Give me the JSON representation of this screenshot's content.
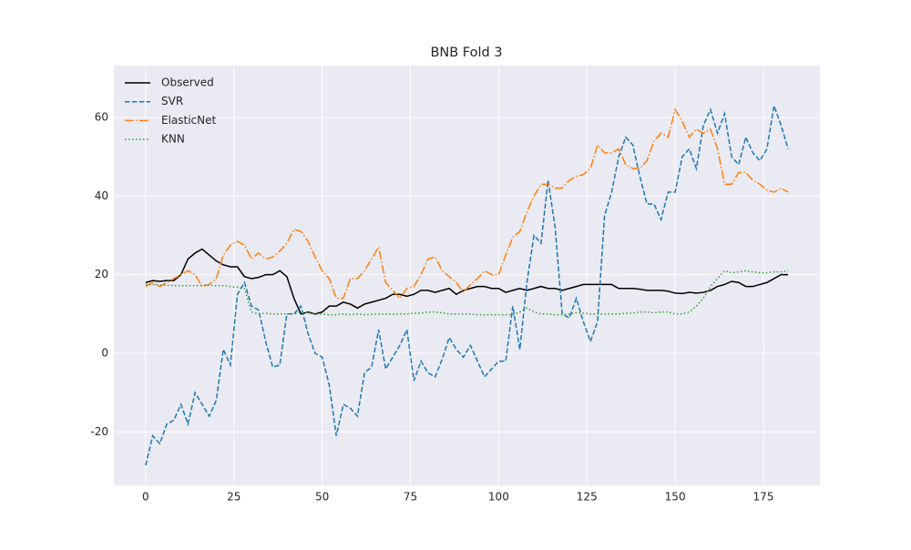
{
  "chart_data": {
    "type": "line",
    "title": "BNB Fold 3",
    "x": [
      0,
      2,
      4,
      6,
      8,
      10,
      12,
      14,
      16,
      18,
      20,
      22,
      24,
      26,
      28,
      30,
      32,
      34,
      36,
      38,
      40,
      42,
      44,
      46,
      48,
      50,
      52,
      54,
      56,
      58,
      60,
      62,
      64,
      66,
      68,
      70,
      72,
      74,
      76,
      78,
      80,
      82,
      84,
      86,
      88,
      90,
      92,
      94,
      96,
      98,
      100,
      102,
      104,
      106,
      108,
      110,
      112,
      114,
      116,
      118,
      120,
      122,
      124,
      126,
      128,
      130,
      132,
      134,
      136,
      138,
      140,
      142,
      144,
      146,
      148,
      150,
      152,
      154,
      156,
      158,
      160,
      162,
      164,
      166,
      168,
      170,
      172,
      174,
      176,
      178,
      180,
      182
    ],
    "series": [
      {
        "name": "Observed",
        "color": "#000000",
        "dash": "solid",
        "values": [
          18,
          18.5,
          18.3,
          18.5,
          18.5,
          20,
          24,
          25.5,
          26.5,
          25,
          23.5,
          22.5,
          22,
          22,
          19.5,
          19,
          19.3,
          20,
          20,
          21,
          19.5,
          14,
          10,
          10.5,
          10,
          10.5,
          12,
          12,
          13,
          12.5,
          11.5,
          12.5,
          13,
          13.5,
          14,
          15,
          15,
          14.5,
          15,
          16,
          16,
          15.5,
          16,
          16.5,
          15,
          16,
          16.5,
          17,
          17,
          16.5,
          16.5,
          15.5,
          16,
          16.5,
          16,
          16.5,
          17,
          16.5,
          16.5,
          16,
          16.5,
          17,
          17.5,
          17.5,
          17.5,
          17.5,
          17.5,
          16.5,
          16.5,
          16.5,
          16.3,
          16,
          16,
          16,
          15.8,
          15.3,
          15.2,
          15.5,
          15.3,
          15.5,
          16,
          17,
          17.5,
          18.3,
          18,
          17,
          17,
          17.5,
          18,
          19,
          20,
          20
        ]
      },
      {
        "name": "SVR",
        "color": "#1f77b4",
        "dash": "dashed",
        "values": [
          -28.5,
          -21,
          -23,
          -18,
          -17,
          -13,
          -18,
          -10,
          -13,
          -16,
          -12,
          1,
          -3,
          15,
          18,
          12,
          11,
          3,
          -3.5,
          -3,
          10,
          10,
          12,
          5,
          0,
          -1,
          -8,
          -21,
          -13,
          -14,
          -16,
          -5,
          -3.5,
          6,
          -4,
          -1,
          2,
          6,
          -7,
          -2,
          -5,
          -6,
          -1.5,
          4,
          1,
          -1,
          2,
          -2,
          -6,
          -4,
          -2,
          -2,
          12,
          1,
          18,
          30,
          28,
          44,
          32,
          10,
          9,
          14,
          8,
          3,
          8,
          35,
          41,
          50,
          55,
          53,
          45,
          38,
          38,
          34,
          41,
          41,
          50,
          52,
          47,
          58,
          62,
          56,
          61,
          50,
          48,
          55,
          51,
          49,
          52,
          63,
          58,
          52
        ]
      },
      {
        "name": "ElasticNet",
        "color": "#ff7f0e",
        "dash": "dashdot",
        "values": [
          17,
          18,
          17,
          18,
          19,
          20,
          21,
          20,
          17,
          17.5,
          19,
          25,
          27.5,
          28.5,
          27.5,
          24,
          25.5,
          24,
          24.5,
          26,
          28,
          31.5,
          31,
          28.5,
          24.5,
          21,
          19,
          14,
          14,
          19,
          19,
          21,
          24,
          27,
          18,
          16,
          14,
          16.5,
          17,
          20,
          24,
          24.5,
          21,
          19.5,
          18,
          15.5,
          17.5,
          19,
          21,
          20,
          20,
          25,
          29.5,
          31,
          36,
          40,
          43,
          43,
          42,
          42,
          44,
          45,
          45.5,
          47,
          53,
          51,
          51,
          52,
          48,
          47,
          47,
          49,
          54,
          56,
          55,
          62,
          59,
          55,
          57,
          56,
          57,
          52,
          43,
          43,
          46,
          46,
          44,
          43,
          41.5,
          41,
          42,
          41
        ]
      },
      {
        "name": "KNN",
        "color": "#2ca02c",
        "dash": "dotted",
        "values": [
          17.5,
          17.5,
          17.3,
          17.3,
          17.2,
          17.2,
          17.2,
          17.2,
          17.3,
          17.3,
          17.2,
          17.2,
          17,
          16.8,
          16.5,
          10.5,
          10,
          10.2,
          10,
          10,
          10,
          10,
          10.5,
          10.3,
          10,
          10,
          9.8,
          9.8,
          10,
          9.8,
          10,
          9.8,
          9.9,
          10,
          10,
          9.9,
          10,
          10,
          10.2,
          10.2,
          10.5,
          10.5,
          10.3,
          10,
          10,
          10,
          10,
          9.8,
          9.8,
          9.8,
          9.8,
          9.8,
          9.8,
          10.5,
          11.5,
          10.5,
          10,
          10,
          9.8,
          9.8,
          10,
          10.3,
          10.2,
          10,
          10,
          10,
          10,
          10,
          10.2,
          10.2,
          10.5,
          10.5,
          10.3,
          10.5,
          10.5,
          10,
          10,
          10.5,
          12,
          14,
          17,
          19,
          21,
          20.5,
          20.7,
          21,
          20.7,
          20.5,
          20.5,
          20.7,
          20.7,
          21
        ]
      }
    ],
    "xlim": [
      -9,
      191
    ],
    "ylim": [
      -33.6,
      73.2
    ],
    "xticks": [
      0,
      25,
      50,
      75,
      100,
      125,
      150,
      175
    ],
    "yticks": [
      -20,
      0,
      20,
      40,
      60
    ],
    "grid": true,
    "legend": "upper left"
  }
}
